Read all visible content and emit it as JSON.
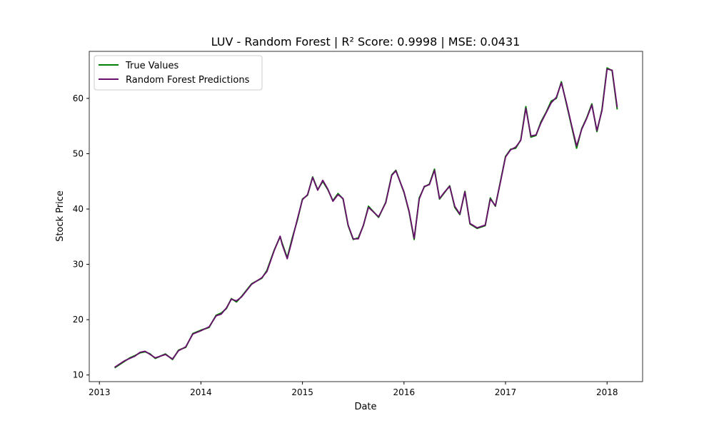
{
  "chart_data": {
    "type": "line",
    "title": "LUV - Random Forest | R² Score: 0.9998 | MSE: 0.0431",
    "xlabel": "Date",
    "ylabel": "Stock Price",
    "xlim": [
      2012.9,
      2018.35
    ],
    "ylim": [
      8.8,
      68.5
    ],
    "xticks": [
      2013,
      2014,
      2015,
      2016,
      2017,
      2018
    ],
    "xtick_labels": [
      "2013",
      "2014",
      "2015",
      "2016",
      "2017",
      "2018"
    ],
    "yticks": [
      10,
      20,
      30,
      40,
      50,
      60
    ],
    "ytick_labels": [
      "10",
      "20",
      "30",
      "40",
      "50",
      "60"
    ],
    "grid": false,
    "legend_position": "upper-left",
    "series": [
      {
        "name": "True Values",
        "color": "#008000",
        "x": [
          2013.15,
          2013.25,
          2013.3,
          2013.35,
          2013.4,
          2013.45,
          2013.5,
          2013.55,
          2013.65,
          2013.72,
          2013.78,
          2013.85,
          2013.92,
          2014.0,
          2014.08,
          2014.15,
          2014.2,
          2014.25,
          2014.3,
          2014.35,
          2014.4,
          2014.5,
          2014.6,
          2014.65,
          2014.72,
          2014.78,
          2014.8,
          2014.85,
          2014.9,
          2014.95,
          2015.0,
          2015.05,
          2015.1,
          2015.15,
          2015.2,
          2015.25,
          2015.3,
          2015.35,
          2015.4,
          2015.45,
          2015.5,
          2015.55,
          2015.6,
          2015.65,
          2015.75,
          2015.82,
          2015.88,
          2015.92,
          2016.0,
          2016.05,
          2016.1,
          2016.15,
          2016.2,
          2016.25,
          2016.3,
          2016.35,
          2016.4,
          2016.45,
          2016.5,
          2016.55,
          2016.6,
          2016.65,
          2016.72,
          2016.8,
          2016.85,
          2016.9,
          2016.95,
          2017.0,
          2017.05,
          2017.1,
          2017.15,
          2017.2,
          2017.25,
          2017.3,
          2017.35,
          2017.4,
          2017.45,
          2017.5,
          2017.55,
          2017.6,
          2017.65,
          2017.7,
          2017.75,
          2017.8,
          2017.85,
          2017.9,
          2017.95,
          2018.0,
          2018.05,
          2018.1
        ],
        "y": [
          11.3,
          12.5,
          13.1,
          13.5,
          14.0,
          14.2,
          13.8,
          13.0,
          13.8,
          12.8,
          14.5,
          15.0,
          17.5,
          18.1,
          18.6,
          20.8,
          21.2,
          22.0,
          23.8,
          23.2,
          24.2,
          26.5,
          27.5,
          28.9,
          32.5,
          35.0,
          33.8,
          31.2,
          34.8,
          38.0,
          41.8,
          42.5,
          45.8,
          43.5,
          45.0,
          43.5,
          41.5,
          42.8,
          41.8,
          37.0,
          34.5,
          34.8,
          37.0,
          40.5,
          38.5,
          41.2,
          46.2,
          47.0,
          43.0,
          39.5,
          34.5,
          42.0,
          44.0,
          44.5,
          47.2,
          41.8,
          43.0,
          44.2,
          40.3,
          39.0,
          43.2,
          37.3,
          36.5,
          37.0,
          42.0,
          40.5,
          45.0,
          49.5,
          50.8,
          51.0,
          52.5,
          58.5,
          53.0,
          53.3,
          55.8,
          57.5,
          59.5,
          60.0,
          63.0,
          59.0,
          55.0,
          51.0,
          54.5,
          56.5,
          59.0,
          54.0,
          58.0,
          65.5,
          65.0,
          58.0
        ]
      },
      {
        "name": "Random Forest Predictions",
        "color": "#6a0f6d",
        "x": [
          2013.15,
          2013.25,
          2013.3,
          2013.35,
          2013.4,
          2013.45,
          2013.5,
          2013.55,
          2013.65,
          2013.72,
          2013.78,
          2013.85,
          2013.92,
          2014.0,
          2014.08,
          2014.15,
          2014.2,
          2014.25,
          2014.3,
          2014.35,
          2014.4,
          2014.5,
          2014.6,
          2014.65,
          2014.72,
          2014.78,
          2014.8,
          2014.85,
          2014.9,
          2014.95,
          2015.0,
          2015.05,
          2015.1,
          2015.15,
          2015.2,
          2015.25,
          2015.3,
          2015.35,
          2015.4,
          2015.45,
          2015.5,
          2015.55,
          2015.6,
          2015.65,
          2015.75,
          2015.82,
          2015.88,
          2015.92,
          2016.0,
          2016.05,
          2016.1,
          2016.15,
          2016.2,
          2016.25,
          2016.3,
          2016.35,
          2016.4,
          2016.45,
          2016.5,
          2016.55,
          2016.6,
          2016.65,
          2016.72,
          2016.8,
          2016.85,
          2016.9,
          2016.95,
          2017.0,
          2017.05,
          2017.1,
          2017.15,
          2017.2,
          2017.25,
          2017.3,
          2017.35,
          2017.4,
          2017.45,
          2017.5,
          2017.55,
          2017.6,
          2017.65,
          2017.7,
          2017.75,
          2017.8,
          2017.85,
          2017.9,
          2017.95,
          2018.0,
          2018.05,
          2018.1
        ],
        "y": [
          11.4,
          12.6,
          13.0,
          13.4,
          14.1,
          14.3,
          13.7,
          13.1,
          13.7,
          12.9,
          14.4,
          15.1,
          17.4,
          18.0,
          18.7,
          20.7,
          21.0,
          22.1,
          23.7,
          23.4,
          24.1,
          26.4,
          27.6,
          28.7,
          32.4,
          35.1,
          33.6,
          31.0,
          34.5,
          38.2,
          41.7,
          42.6,
          45.7,
          43.4,
          45.2,
          43.6,
          41.4,
          42.6,
          41.9,
          37.1,
          34.6,
          34.6,
          37.1,
          40.3,
          38.6,
          41.1,
          46.1,
          46.9,
          43.1,
          39.6,
          34.7,
          41.8,
          44.1,
          44.4,
          47.0,
          41.9,
          43.1,
          44.1,
          40.5,
          39.1,
          43.1,
          37.4,
          36.6,
          37.1,
          41.8,
          40.6,
          44.9,
          49.4,
          50.7,
          51.2,
          52.4,
          58.2,
          53.2,
          53.4,
          55.6,
          57.4,
          59.2,
          60.2,
          62.8,
          59.2,
          55.2,
          51.4,
          54.4,
          56.4,
          58.8,
          54.2,
          57.8,
          65.3,
          65.1,
          58.4
        ]
      }
    ]
  }
}
